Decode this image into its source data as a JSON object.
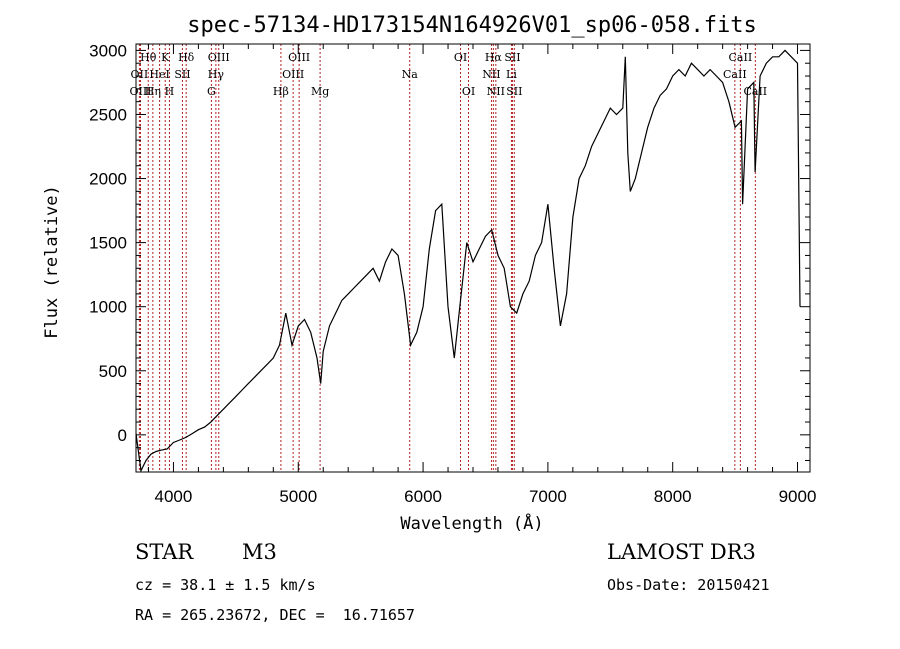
{
  "chart_data": {
    "type": "line",
    "title": "spec-57134-HD173154N164926V01_sp06-058.fits",
    "xlabel": "Wavelength (Å)",
    "ylabel": "Flux (relative)",
    "xlim": [
      3700,
      9100
    ],
    "ylim": [
      -290,
      3050
    ],
    "xticks": [
      4000,
      5000,
      6000,
      7000,
      8000,
      9000
    ],
    "yticks": [
      0,
      500,
      1000,
      1500,
      2000,
      2500,
      3000
    ],
    "series": [
      {
        "name": "flux",
        "x": [
          3700,
          3740,
          3780,
          3820,
          3860,
          3900,
          3950,
          4000,
          4050,
          4100,
          4150,
          4200,
          4250,
          4300,
          4350,
          4400,
          4450,
          4500,
          4550,
          4600,
          4650,
          4700,
          4750,
          4800,
          4850,
          4880,
          4900,
          4950,
          5000,
          5050,
          5100,
          5150,
          5180,
          5200,
          5250,
          5300,
          5350,
          5400,
          5450,
          5500,
          5550,
          5600,
          5650,
          5700,
          5750,
          5800,
          5850,
          5900,
          5950,
          6000,
          6050,
          6100,
          6150,
          6200,
          6250,
          6300,
          6350,
          6400,
          6450,
          6500,
          6550,
          6600,
          6650,
          6700,
          6750,
          6800,
          6850,
          6900,
          6950,
          7000,
          7050,
          7100,
          7150,
          7200,
          7250,
          7300,
          7350,
          7400,
          7450,
          7500,
          7550,
          7600,
          7620,
          7640,
          7660,
          7680,
          7700,
          7750,
          7800,
          7850,
          7900,
          7950,
          8000,
          8050,
          8100,
          8150,
          8200,
          8250,
          8300,
          8350,
          8400,
          8450,
          8500,
          8550,
          8560,
          8600,
          8650,
          8660,
          8700,
          8750,
          8800,
          8850,
          8900,
          8950,
          9000,
          9020
        ],
        "y": [
          10,
          -280,
          -200,
          -150,
          -130,
          -120,
          -110,
          -60,
          -40,
          -20,
          10,
          40,
          60,
          100,
          150,
          200,
          250,
          300,
          350,
          400,
          450,
          500,
          550,
          600,
          700,
          850,
          950,
          700,
          850,
          900,
          800,
          600,
          400,
          650,
          850,
          950,
          1050,
          1100,
          1150,
          1200,
          1250,
          1300,
          1200,
          1350,
          1450,
          1400,
          1100,
          700,
          800,
          1000,
          1450,
          1750,
          1800,
          1000,
          600,
          1050,
          1500,
          1350,
          1450,
          1550,
          1600,
          1400,
          1300,
          1000,
          950,
          1100,
          1200,
          1400,
          1500,
          1800,
          1300,
          850,
          1100,
          1700,
          2000,
          2100,
          2250,
          2350,
          2450,
          2550,
          2500,
          2550,
          2950,
          2200,
          1900,
          1950,
          2000,
          2200,
          2400,
          2550,
          2650,
          2700,
          2800,
          2850,
          2800,
          2900,
          2850,
          2800,
          2850,
          2800,
          2750,
          2600,
          2400,
          2450,
          1800,
          2700,
          2750,
          2050,
          2800,
          2900,
          2950,
          2950,
          3000,
          2950,
          2900,
          1000
        ]
      }
    ],
    "spectral_lines": [
      {
        "label": "Hθ",
        "wl": 3798,
        "row": 0
      },
      {
        "label": "OII",
        "wl": 3727,
        "row": 1
      },
      {
        "label": "OIII",
        "wl": 3736,
        "row": 2
      },
      {
        "label": "HeI",
        "wl": 3889,
        "row": 1
      },
      {
        "label": "Hη",
        "wl": 3835,
        "row": 2
      },
      {
        "label": "K",
        "wl": 3934,
        "row": 0
      },
      {
        "label": "SII",
        "wl": 4072,
        "row": 1
      },
      {
        "label": "H",
        "wl": 3968,
        "row": 2
      },
      {
        "label": "Hδ",
        "wl": 4102,
        "row": 0
      },
      {
        "label": "OIII",
        "wl": 4363,
        "row": 0
      },
      {
        "label": "Hγ",
        "wl": 4340,
        "row": 1
      },
      {
        "label": "G",
        "wl": 4304,
        "row": 2
      },
      {
        "label": "OIII",
        "wl": 5007,
        "row": 0
      },
      {
        "label": "OIII",
        "wl": 4959,
        "row": 1
      },
      {
        "label": "Hβ",
        "wl": 4861,
        "row": 2
      },
      {
        "label": "Mg",
        "wl": 5175,
        "row": 2
      },
      {
        "label": "Na",
        "wl": 5893,
        "row": 1
      },
      {
        "label": "OI",
        "wl": 6300,
        "row": 0
      },
      {
        "label": "OI",
        "wl": 6364,
        "row": 2
      },
      {
        "label": "Hα",
        "wl": 6563,
        "row": 0
      },
      {
        "label": "SII",
        "wl": 6716,
        "row": 0
      },
      {
        "label": "NII",
        "wl": 6548,
        "row": 1
      },
      {
        "label": "Li",
        "wl": 6708,
        "row": 1
      },
      {
        "label": "NII",
        "wl": 6583,
        "row": 2
      },
      {
        "label": "SII",
        "wl": 6731,
        "row": 2
      },
      {
        "label": "CaII",
        "wl": 8542,
        "row": 0
      },
      {
        "label": "CaII",
        "wl": 8498,
        "row": 1
      },
      {
        "label": "CaII",
        "wl": 8662,
        "row": 2
      }
    ]
  },
  "info": {
    "class_label": "STAR",
    "subclass": "M3",
    "survey": "LAMOST DR3",
    "cz": "cz = 38.1 ± 1.5 km/s",
    "obs_date": "Obs-Date: 20150421",
    "coords": "RA = 265.23672, DEC =  16.71657"
  },
  "colors": {
    "line_marker": "#b22222",
    "spectrum": "#000000"
  }
}
